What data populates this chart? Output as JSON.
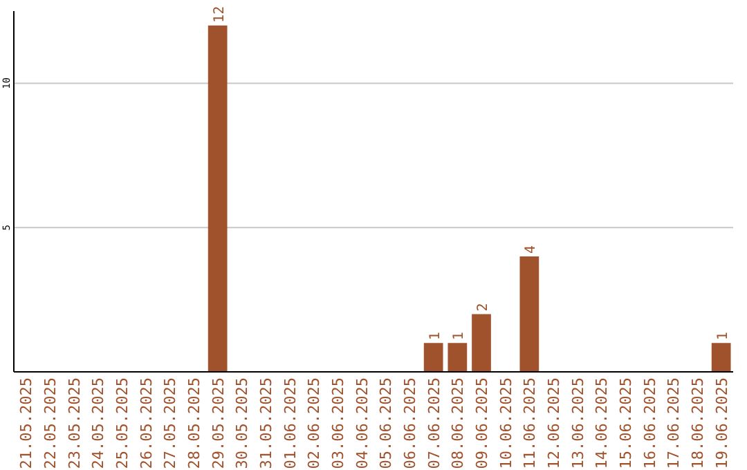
{
  "chart_data": {
    "type": "bar",
    "categories": [
      "21.05.2025",
      "22.05.2025",
      "23.05.2025",
      "24.05.2025",
      "25.05.2025",
      "26.05.2025",
      "27.05.2025",
      "28.05.2025",
      "29.05.2025",
      "30.05.2025",
      "31.05.2025",
      "01.06.2025",
      "02.06.2025",
      "03.06.2025",
      "04.06.2025",
      "05.06.2025",
      "06.06.2025",
      "07.06.2025",
      "08.06.2025",
      "09.06.2025",
      "10.06.2025",
      "11.06.2025",
      "12.06.2025",
      "13.06.2025",
      "14.06.2025",
      "15.06.2025",
      "16.06.2025",
      "17.06.2025",
      "18.06.2025",
      "19.06.2025"
    ],
    "values": [
      0,
      0,
      0,
      0,
      0,
      0,
      0,
      0,
      12,
      0,
      0,
      0,
      0,
      0,
      0,
      0,
      0,
      1,
      1,
      2,
      0,
      4,
      0,
      0,
      0,
      0,
      0,
      0,
      0,
      1
    ],
    "value_labels": [
      null,
      null,
      null,
      null,
      null,
      null,
      null,
      null,
      "12",
      null,
      null,
      null,
      null,
      null,
      null,
      null,
      null,
      "1",
      "1",
      "2",
      null,
      "4",
      null,
      null,
      null,
      null,
      null,
      null,
      null,
      "1"
    ],
    "color": "#a0522d",
    "ylim": [
      0,
      12.5
    ],
    "yticks": [
      5,
      10
    ],
    "grid": "y"
  }
}
